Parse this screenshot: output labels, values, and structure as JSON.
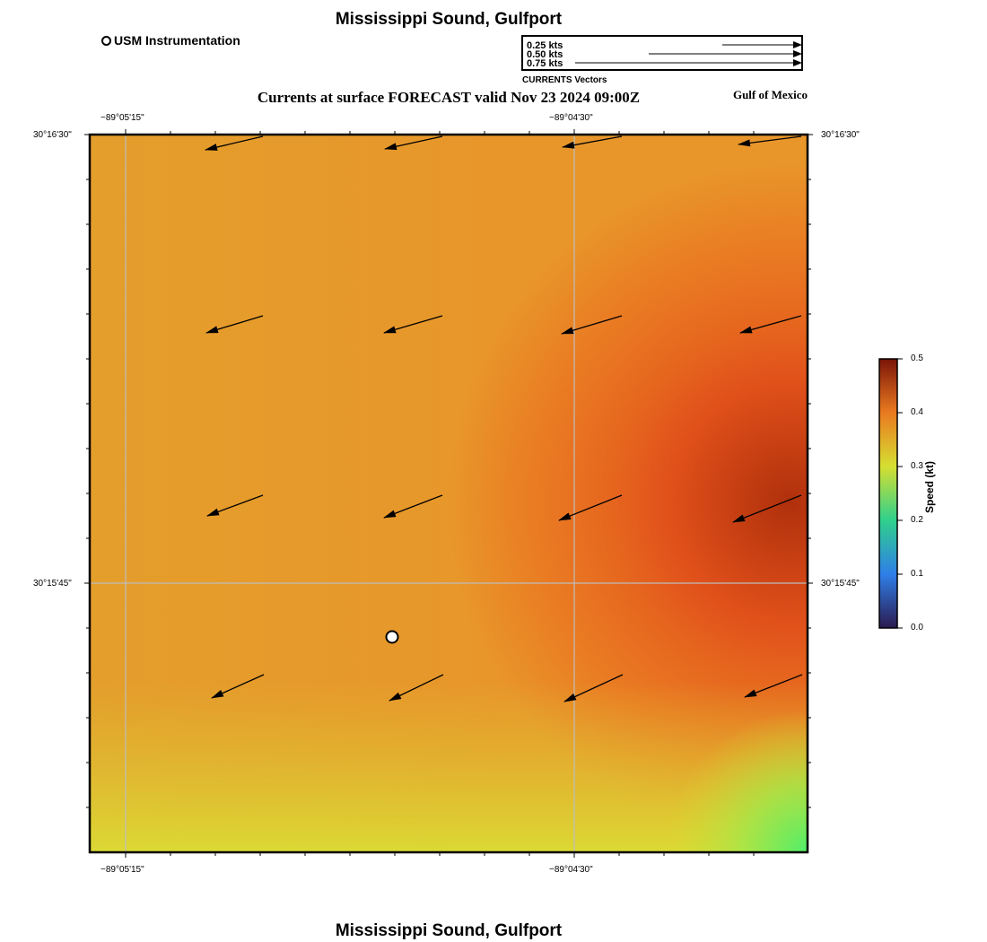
{
  "title": "Mississippi Sound, Gulfport",
  "subtitle": "Currents at surface FORECAST valid Nov 23 2024 09:00Z",
  "region_label": "Gulf of Mexico",
  "station_legend": "USM Instrumentation",
  "vector_legend": {
    "caption": "CURRENTS Vectors",
    "entries": [
      {
        "label": "0.25 kts",
        "speed": 0.25
      },
      {
        "label": "0.50 kts",
        "speed": 0.5
      },
      {
        "label": "0.75 kts",
        "speed": 0.75
      }
    ]
  },
  "axes": {
    "x_ticks": [
      "−89°05'15\"",
      "−89°04'30\""
    ],
    "y_ticks": [
      "30°16'30\"",
      "30°15'45\""
    ]
  },
  "colorbar": {
    "title": "Speed (kt)",
    "ticks": [
      "0.0",
      "0.1",
      "0.2",
      "0.3",
      "0.4",
      "0.5"
    ],
    "min": 0.0,
    "max": 0.5,
    "colors": [
      "#2b1a4f",
      "#2f7fe8",
      "#2fd08c",
      "#d6df31",
      "#ea7a20",
      "#7a1408"
    ]
  }
}
